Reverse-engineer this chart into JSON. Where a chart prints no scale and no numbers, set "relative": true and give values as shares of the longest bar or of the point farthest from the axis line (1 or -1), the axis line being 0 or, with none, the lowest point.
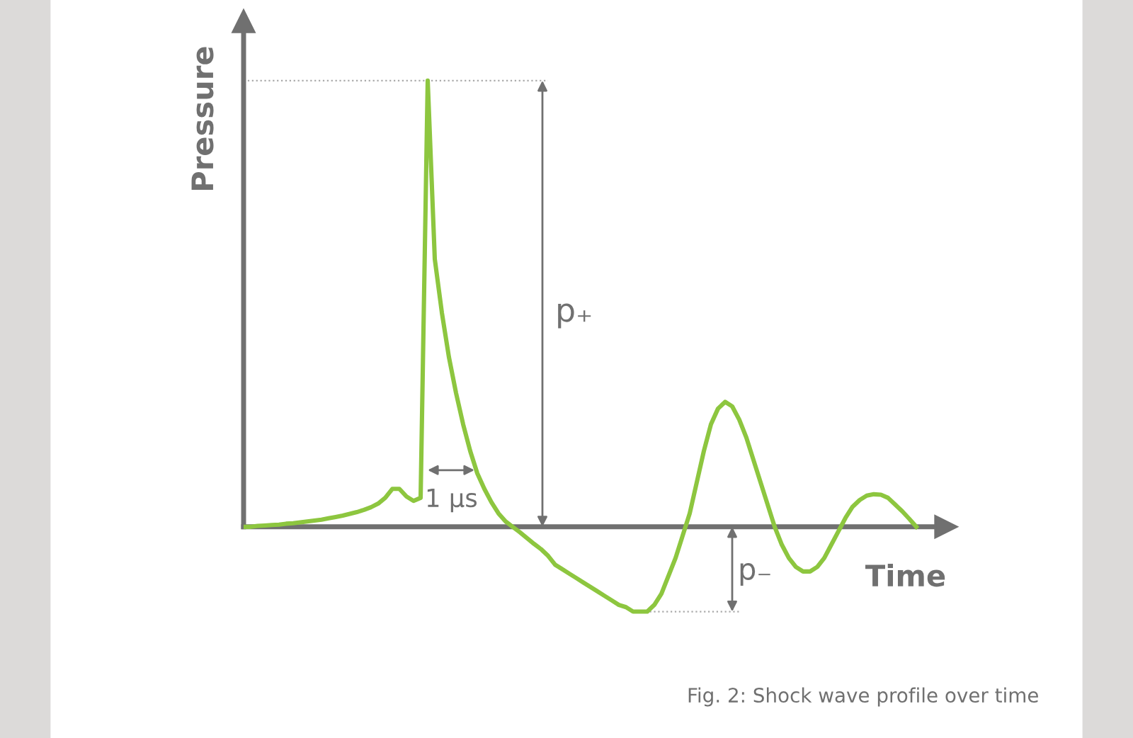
{
  "chart_data": {
    "type": "line",
    "relative": true,
    "xlabel": "Time",
    "ylabel": "Pressure",
    "categories": [
      null,
      null,
      null,
      null,
      null,
      null,
      null,
      null,
      null,
      null,
      null,
      null,
      null,
      null,
      null,
      null,
      null,
      null,
      null,
      null,
      null,
      null,
      null,
      null,
      null,
      null,
      null,
      null,
      null,
      null,
      null,
      null,
      null,
      null,
      null,
      null,
      null,
      null,
      null,
      null,
      null,
      null,
      null,
      null,
      null,
      null,
      null,
      null,
      null,
      null,
      null,
      null,
      null,
      null,
      null,
      null,
      null,
      null,
      null,
      null,
      null,
      null,
      null,
      null,
      null,
      null,
      null,
      null,
      null,
      null,
      null,
      null,
      null,
      null,
      null,
      null,
      null,
      null,
      null,
      null,
      null,
      null,
      null,
      null,
      null,
      null,
      null,
      null,
      null,
      null,
      null,
      null,
      null,
      null,
      null,
      null
    ],
    "series": [
      {
        "color": "#8dc63f",
        "values": [
          0.0,
          0.0,
          0.002,
          0.003,
          0.004,
          0.005,
          0.007,
          0.008,
          0.01,
          0.012,
          0.014,
          0.016,
          0.019,
          0.022,
          0.025,
          0.029,
          0.033,
          0.038,
          0.044,
          0.052,
          0.065,
          0.085,
          0.085,
          0.068,
          0.058,
          0.065,
          1.0,
          0.6,
          0.48,
          0.38,
          0.3,
          0.23,
          0.17,
          0.12,
          0.085,
          0.055,
          0.03,
          0.012,
          0.0,
          -0.012,
          -0.025,
          -0.038,
          -0.05,
          -0.065,
          -0.085,
          -0.095,
          -0.105,
          -0.115,
          -0.125,
          -0.135,
          -0.145,
          -0.155,
          -0.165,
          -0.175,
          -0.18,
          -0.19,
          -0.19,
          -0.19,
          -0.175,
          -0.15,
          -0.11,
          -0.07,
          -0.02,
          0.03,
          0.1,
          0.17,
          0.23,
          0.265,
          0.28,
          0.27,
          0.24,
          0.2,
          0.15,
          0.1,
          0.05,
          0.0,
          -0.04,
          -0.07,
          -0.09,
          -0.1,
          -0.1,
          -0.09,
          -0.07,
          -0.04,
          -0.01,
          0.02,
          0.045,
          0.06,
          0.07,
          0.073,
          0.072,
          0.065,
          0.05,
          0.035,
          0.018,
          0.0
        ]
      }
    ],
    "ref_lines": [
      {
        "axis": "y",
        "value": 1.0,
        "line_style": "dotted",
        "color": "#aaaaaa"
      },
      {
        "axis": "y",
        "value": -0.19,
        "line_style": "dotted",
        "color": "#aaaaaa"
      }
    ],
    "annotations": [
      "p₊",
      "p₋",
      "1 µs",
      "Fig. 2: Shock wave profile over time"
    ],
    "marker": "none",
    "line_style": "solid",
    "legend": false
  }
}
